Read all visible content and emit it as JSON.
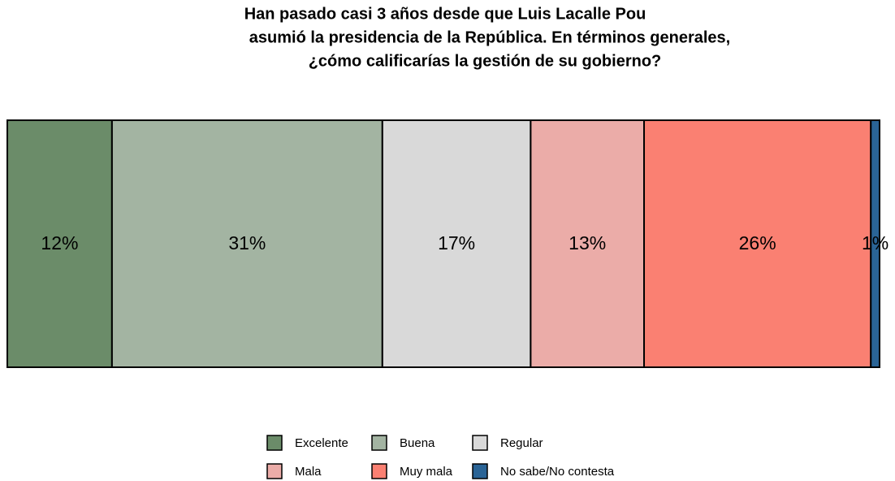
{
  "chart_data": {
    "type": "bar",
    "orientation": "horizontal",
    "stacked": true,
    "title": [
      "Han pasado casi 3 años desde que Luis Lacalle Pou",
      "asumió la presidencia de la República. En términos generales,",
      "¿cómo calificarías la gestión de su gobierno?"
    ],
    "series": [
      {
        "name": "Excelente",
        "color": "#6b8c69",
        "values": [
          12
        ],
        "value_labels": [
          "12%"
        ]
      },
      {
        "name": "Buena",
        "color": "#a3b4a2",
        "values": [
          31
        ],
        "value_labels": [
          "31%"
        ]
      },
      {
        "name": "Regular",
        "color": "#d9d9d9",
        "values": [
          17
        ],
        "value_labels": [
          "17%"
        ]
      },
      {
        "name": "Mala",
        "color": "#ebaca8",
        "values": [
          13
        ],
        "value_labels": [
          "13%"
        ]
      },
      {
        "name": "Muy mala",
        "color": "#fa8072",
        "values": [
          26
        ],
        "value_labels": [
          "26%"
        ]
      },
      {
        "name": "No sabe/No contesta",
        "color": "#2a6496",
        "values": [
          1
        ],
        "value_labels": [
          "1%"
        ]
      }
    ],
    "legend": "bottom"
  }
}
